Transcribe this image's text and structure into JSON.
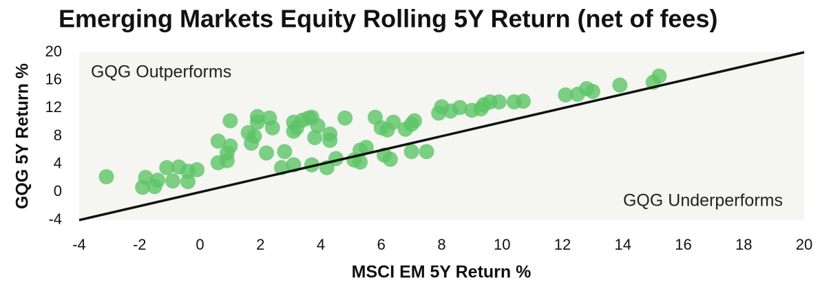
{
  "chart_data": {
    "type": "scatter",
    "title": "Emerging Markets Equity Rolling 5Y Return (net of fees)",
    "xlabel": "MSCI EM 5Y Return %",
    "ylabel": "GQG 5Y Return %",
    "annotations": [
      "GQG Outperforms",
      "GQG Underperforms"
    ],
    "color": "#5cc466",
    "diagonal": true,
    "xlim": [
      -4,
      20
    ],
    "xticks": [
      -4,
      -2,
      0,
      2,
      4,
      6,
      8,
      10,
      12,
      14,
      16,
      18,
      20
    ],
    "ylim": [
      -4,
      20
    ],
    "yticks": [
      -4,
      0,
      4,
      8,
      12,
      16,
      20
    ],
    "x": [
      -3.1,
      -1.8,
      -1.9,
      -1.5,
      -1.4,
      -1.1,
      -0.9,
      -0.7,
      -0.4,
      -0.4,
      -0.1,
      0.6,
      0.6,
      0.9,
      0.9,
      1.0,
      1.0,
      1.6,
      1.7,
      1.8,
      1.9,
      1.9,
      2.2,
      2.3,
      2.4,
      2.7,
      2.8,
      3.1,
      3.1,
      3.1,
      3.2,
      3.4,
      3.6,
      3.7,
      3.7,
      3.8,
      3.9,
      4.2,
      4.3,
      4.3,
      4.5,
      4.8,
      5.1,
      5.3,
      5.3,
      5.5,
      5.8,
      6.0,
      6.1,
      6.2,
      6.3,
      6.4,
      6.8,
      7.0,
      7.0,
      7.1,
      7.5,
      7.9,
      8.0,
      8.3,
      8.6,
      9.0,
      9.3,
      9.4,
      9.6,
      9.9,
      10.4,
      10.7,
      12.1,
      12.5,
      12.8,
      13.0,
      13.9,
      15.0,
      15.2
    ],
    "values": [
      2.2,
      2.1,
      0.7,
      0.8,
      1.7,
      3.5,
      1.6,
      3.6,
      3.0,
      1.5,
      3.2,
      7.3,
      4.2,
      4.5,
      5.6,
      6.6,
      10.2,
      8.5,
      7.0,
      8.0,
      10.8,
      10.0,
      5.6,
      10.6,
      9.2,
      3.5,
      5.8,
      10.0,
      3.9,
      8.7,
      9.2,
      10.3,
      10.6,
      10.7,
      3.9,
      7.8,
      9.5,
      3.5,
      8.3,
      7.4,
      4.8,
      10.6,
      4.6,
      4.3,
      6.0,
      6.4,
      10.7,
      9.2,
      5.3,
      8.9,
      4.7,
      10.0,
      9.0,
      5.8,
      9.7,
      10.2,
      5.8,
      11.3,
      12.2,
      11.6,
      12.1,
      11.7,
      11.9,
      12.5,
      12.9,
      12.9,
      12.9,
      13.0,
      13.9,
      14.0,
      14.8,
      14.4,
      15.3,
      15.7,
      16.6
    ]
  }
}
